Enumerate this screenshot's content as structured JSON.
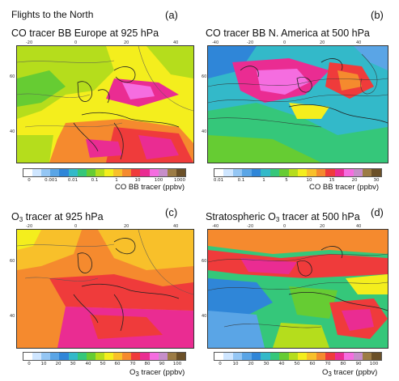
{
  "header": "Flights to the North",
  "panels": [
    {
      "id": "a",
      "tag": "(a)",
      "title": "CO tracer BB Europe at 925 hPa",
      "colorbar_label": "CO BB tracer (ppbv)",
      "colorbar_ticks": [
        "0",
        "0.001",
        "0.01",
        "0.1",
        "1",
        "10",
        "100",
        "1000"
      ],
      "colorbar_colors": [
        "#ffffff",
        "#cfe6ff",
        "#94c6f4",
        "#5aa5e6",
        "#2f86d8",
        "#33b9c9",
        "#35c77a",
        "#66cc33",
        "#b5dd1c",
        "#f4ee1d",
        "#f8c02a",
        "#f58a2e",
        "#ef3b3b",
        "#ea2c92",
        "#f56de0",
        "#c68ec9",
        "#9c7c45",
        "#6b5028"
      ],
      "axis_top": [
        "-20",
        "0",
        "20",
        "40"
      ],
      "axis_left": [
        "60",
        "40"
      ]
    },
    {
      "id": "b",
      "tag": "(b)",
      "title": "CO tracer BB N. America at 500 hPa",
      "colorbar_label": "CO BB tracer (ppbv)",
      "colorbar_ticks": [
        "0.01",
        "0.1",
        "1",
        "5",
        "10",
        "15",
        "20",
        "30"
      ],
      "colorbar_colors": [
        "#ffffff",
        "#cfe6ff",
        "#94c6f4",
        "#5aa5e6",
        "#2f86d8",
        "#33b9c9",
        "#35c77a",
        "#66cc33",
        "#b5dd1c",
        "#f4ee1d",
        "#f8c02a",
        "#f58a2e",
        "#ef3b3b",
        "#ea2c92",
        "#f56de0",
        "#c68ec9",
        "#9c7c45",
        "#6b5028"
      ],
      "axis_top": [
        "-40",
        "-20",
        "0",
        "20",
        "40"
      ],
      "axis_left": [
        "60",
        "40"
      ]
    },
    {
      "id": "c",
      "tag": "(c)",
      "title_prefix": "O",
      "title_sub": "3",
      "title_suffix": " tracer at 925 hPa",
      "colorbar_label_prefix": "O",
      "colorbar_label_sub": "3",
      "colorbar_label_suffix": " tracer (ppbv)",
      "colorbar_ticks": [
        "0",
        "10",
        "20",
        "30",
        "40",
        "50",
        "60",
        "70",
        "80",
        "90",
        "100"
      ],
      "colorbar_colors": [
        "#ffffff",
        "#cfe6ff",
        "#94c6f4",
        "#5aa5e6",
        "#2f86d8",
        "#33b9c9",
        "#35c77a",
        "#66cc33",
        "#b5dd1c",
        "#f4ee1d",
        "#f8c02a",
        "#f58a2e",
        "#ef3b3b",
        "#ea2c92",
        "#f56de0",
        "#c68ec9",
        "#9c7c45",
        "#6b5028"
      ],
      "axis_top": [
        "-20",
        "0",
        "20",
        "40"
      ],
      "axis_left": [
        "60",
        "40"
      ]
    },
    {
      "id": "d",
      "tag": "(d)",
      "title_prefix": "Stratospheric O",
      "title_sub": "3",
      "title_suffix": " tracer at 500 hPa",
      "colorbar_label_prefix": "O",
      "colorbar_label_sub": "3",
      "colorbar_label_suffix": " tracer (ppbv)",
      "colorbar_ticks": [
        "0",
        "10",
        "20",
        "30",
        "40",
        "50",
        "60",
        "70",
        "80",
        "90",
        "100"
      ],
      "colorbar_colors": [
        "#ffffff",
        "#cfe6ff",
        "#94c6f4",
        "#5aa5e6",
        "#2f86d8",
        "#33b9c9",
        "#35c77a",
        "#66cc33",
        "#b5dd1c",
        "#f4ee1d",
        "#f8c02a",
        "#f58a2e",
        "#ef3b3b",
        "#ea2c92",
        "#f56de0",
        "#c68ec9",
        "#9c7c45",
        "#6b5028"
      ],
      "axis_top": [
        "-40",
        "-20",
        "0",
        "20",
        "40"
      ],
      "axis_left": [
        "60",
        "40"
      ]
    }
  ]
}
